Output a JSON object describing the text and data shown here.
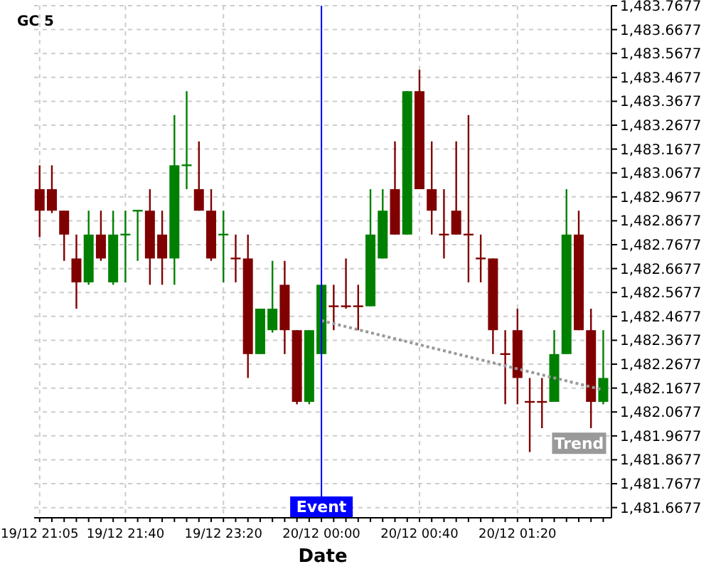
{
  "chart_data": {
    "type": "candlestick",
    "title": "GC 5",
    "xlabel": "Date",
    "categories": [
      "19/12 21:05",
      null,
      null,
      null,
      null,
      null,
      null,
      "19/12 21:40",
      null,
      null,
      null,
      null,
      null,
      null,
      null,
      "19/12 23:20",
      null,
      null,
      null,
      null,
      null,
      null,
      null,
      "20/12 00:00",
      null,
      null,
      null,
      null,
      null,
      null,
      null,
      "20/12 00:40",
      null,
      null,
      null,
      null,
      null,
      null,
      null,
      "20/12 01:20",
      null,
      null,
      null,
      null,
      null,
      null,
      null
    ],
    "ohlc": [
      [
        1483.0,
        1483.1,
        1482.8,
        1482.91
      ],
      [
        1483.0,
        1483.1,
        1482.9,
        1482.91
      ],
      [
        1482.91,
        1482.91,
        1482.7,
        1482.81
      ],
      [
        1482.71,
        1482.81,
        1482.5,
        1482.61
      ],
      [
        1482.61,
        1482.91,
        1482.6,
        1482.81
      ],
      [
        1482.81,
        1482.91,
        1482.7,
        1482.71
      ],
      [
        1482.61,
        1482.91,
        1482.6,
        1482.81
      ],
      [
        1482.81,
        1482.91,
        1482.61,
        1482.81
      ],
      [
        1482.91,
        1482.91,
        1482.7,
        1482.91
      ],
      [
        1482.91,
        1483.0,
        1482.6,
        1482.71
      ],
      [
        1482.81,
        1482.91,
        1482.6,
        1482.71
      ],
      [
        1482.71,
        1483.31,
        1482.6,
        1483.1
      ],
      [
        1483.1,
        1483.41,
        1483.0,
        1483.1
      ],
      [
        1483.0,
        1483.2,
        1482.91,
        1482.91
      ],
      [
        1482.91,
        1483.0,
        1482.7,
        1482.71
      ],
      [
        1482.81,
        1482.91,
        1482.61,
        1482.81
      ],
      [
        1482.71,
        1482.81,
        1482.61,
        1482.71
      ],
      [
        1482.71,
        1482.81,
        1482.21,
        1482.31
      ],
      [
        1482.31,
        1482.5,
        1482.31,
        1482.5
      ],
      [
        1482.41,
        1482.7,
        1482.4,
        1482.5
      ],
      [
        1482.6,
        1482.7,
        1482.31,
        1482.41
      ],
      [
        1482.41,
        1482.41,
        1482.1,
        1482.11
      ],
      [
        1482.11,
        1482.41,
        1482.1,
        1482.41
      ],
      [
        1482.31,
        1482.6,
        1482.31,
        1482.6
      ],
      [
        1482.51,
        1482.6,
        1482.41,
        1482.51
      ],
      [
        1482.51,
        1482.71,
        1482.5,
        1482.51
      ],
      [
        1482.51,
        1482.6,
        1482.41,
        1482.51
      ],
      [
        1482.51,
        1483.0,
        1482.51,
        1482.81
      ],
      [
        1482.71,
        1483.0,
        1482.71,
        1482.91
      ],
      [
        1483.0,
        1483.2,
        1482.81,
        1482.81
      ],
      [
        1482.81,
        1483.41,
        1482.81,
        1483.41
      ],
      [
        1483.41,
        1483.5,
        1483.0,
        1483.0
      ],
      [
        1483.0,
        1483.2,
        1482.81,
        1482.91
      ],
      [
        1482.81,
        1483.0,
        1482.71,
        1482.81
      ],
      [
        1482.91,
        1483.2,
        1482.81,
        1482.81
      ],
      [
        1482.81,
        1483.31,
        1482.61,
        1482.81
      ],
      [
        1482.71,
        1482.81,
        1482.61,
        1482.71
      ],
      [
        1482.71,
        1482.71,
        1482.31,
        1482.41
      ],
      [
        1482.31,
        1482.41,
        1482.1,
        1482.31
      ],
      [
        1482.41,
        1482.5,
        1482.1,
        1482.21
      ],
      [
        1482.11,
        1482.21,
        1481.9,
        1482.11
      ],
      [
        1482.11,
        1482.21,
        1482.0,
        1482.11
      ],
      [
        1482.11,
        1482.41,
        1482.11,
        1482.31
      ],
      [
        1482.31,
        1483.0,
        1482.31,
        1482.81
      ],
      [
        1482.81,
        1482.91,
        1482.41,
        1482.41
      ],
      [
        1482.41,
        1482.5,
        1482.0,
        1482.11
      ],
      [
        1482.11,
        1482.41,
        1482.1,
        1482.21
      ]
    ],
    "colors": [
      "#800000",
      "#800000",
      "#800000",
      "#800000",
      "#008000",
      "#800000",
      "#008000",
      "#008000",
      "#008000",
      "#800000",
      "#800000",
      "#008000",
      "#008000",
      "#800000",
      "#800000",
      "#008000",
      "#800000",
      "#800000",
      "#008000",
      "#008000",
      "#800000",
      "#800000",
      "#008000",
      "#008000",
      "#800000",
      "#800000",
      "#800000",
      "#008000",
      "#008000",
      "#800000",
      "#008000",
      "#800000",
      "#800000",
      "#800000",
      "#800000",
      "#800000",
      "#800000",
      "#800000",
      "#800000",
      "#800000",
      "#800000",
      "#800000",
      "#008000",
      "#008000",
      "#800000",
      "#800000",
      "#008000"
    ],
    "series": [
      {
        "name": "Trend",
        "type": "line",
        "color": "#999999",
        "line_style": "dotted",
        "values": [
          null,
          null,
          null,
          null,
          null,
          null,
          null,
          null,
          null,
          null,
          null,
          null,
          null,
          null,
          null,
          null,
          null,
          null,
          null,
          null,
          null,
          null,
          null,
          1482.45,
          null,
          null,
          null,
          null,
          null,
          null,
          null,
          null,
          null,
          null,
          null,
          null,
          null,
          null,
          null,
          null,
          null,
          null,
          null,
          null,
          null,
          null,
          1482.16
        ]
      }
    ],
    "ref_lines": [
      {
        "axis": "x",
        "value": "20/12 00:00",
        "label": "Event",
        "color": "#0000ff"
      }
    ],
    "ylim": [
      1481.625,
      1483.7677
    ],
    "yticks": [
      {
        "value": 1481.6677,
        "label": "1,481.6677"
      },
      {
        "value": 1481.7677,
        "label": "1,481.7677"
      },
      {
        "value": 1481.8677,
        "label": "1,481.8677"
      },
      {
        "value": 1481.9677,
        "label": "1,481.9677"
      },
      {
        "value": 1482.0677,
        "label": "1,482.0677"
      },
      {
        "value": 1482.1677,
        "label": "1,482.1677"
      },
      {
        "value": 1482.2677,
        "label": "1,482.2677"
      },
      {
        "value": 1482.3677,
        "label": "1,482.3677"
      },
      {
        "value": 1482.4677,
        "label": "1,482.4677"
      },
      {
        "value": 1482.5677,
        "label": "1,482.5677"
      },
      {
        "value": 1482.6677,
        "label": "1,482.6677"
      },
      {
        "value": 1482.7677,
        "label": "1,482.7677"
      },
      {
        "value": 1482.8677,
        "label": "1,482.8677"
      },
      {
        "value": 1482.9677,
        "label": "1,482.9677"
      },
      {
        "value": 1483.0677,
        "label": "1,483.0677"
      },
      {
        "value": 1483.1677,
        "label": "1,483.1677"
      },
      {
        "value": 1483.2677,
        "label": "1,483.2677"
      },
      {
        "value": 1483.3677,
        "label": "1,483.3677"
      },
      {
        "value": 1483.4677,
        "label": "1,483.4677"
      },
      {
        "value": 1483.5677,
        "label": "1,483.5677"
      },
      {
        "value": 1483.6677,
        "label": "1,483.6677"
      },
      {
        "value": 1483.7677,
        "label": "1,483.7677"
      }
    ],
    "grid": true
  }
}
